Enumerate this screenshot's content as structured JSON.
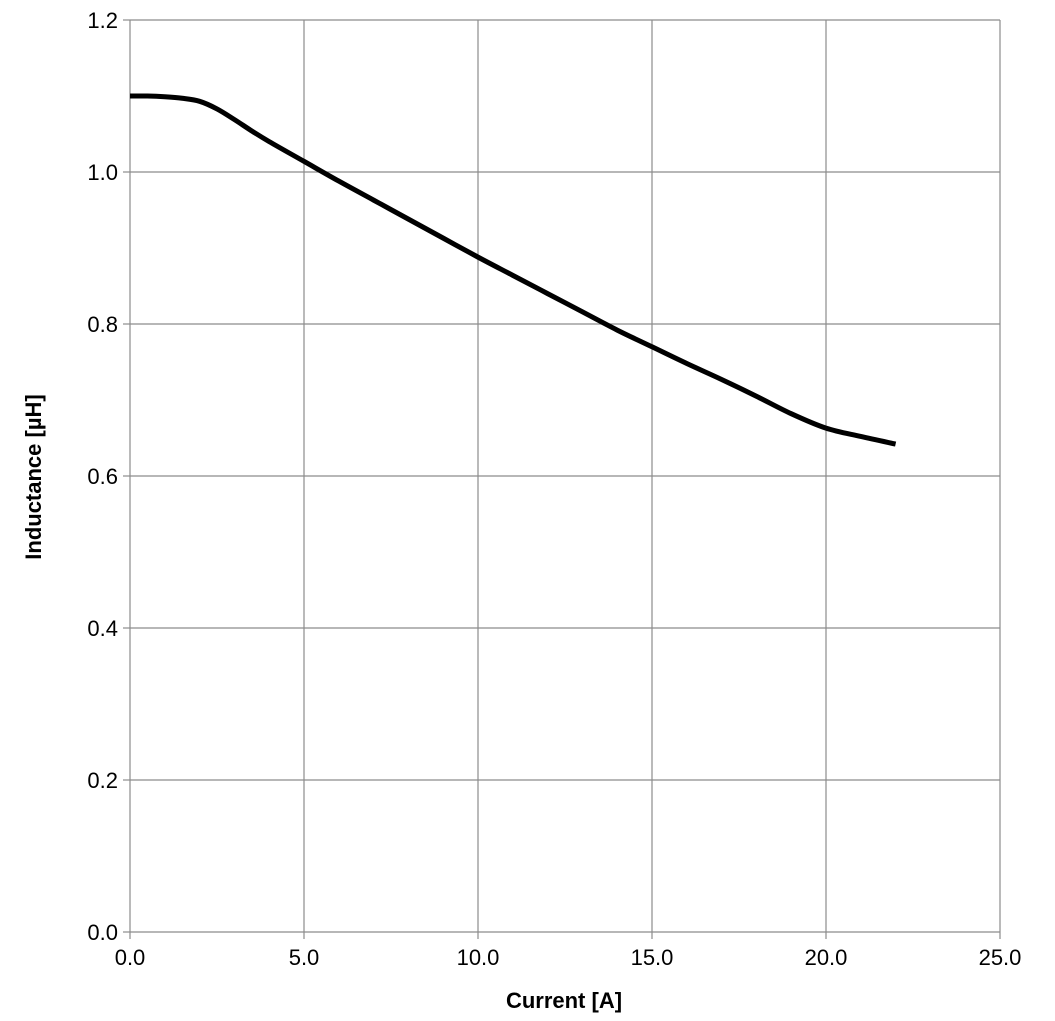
{
  "chart_data": {
    "type": "line",
    "title": "",
    "xlabel": "Current [A]",
    "ylabel": "Inductance [µH]",
    "xlim": [
      0,
      25
    ],
    "ylim": [
      0,
      1.2
    ],
    "x_ticks": [
      "0.0",
      "5.0",
      "10.0",
      "15.0",
      "20.0",
      "25.0"
    ],
    "y_ticks": [
      "0.0",
      "0.2",
      "0.4",
      "0.6",
      "0.8",
      "1.0",
      "1.2"
    ],
    "grid": true,
    "legend": "none",
    "series": [
      {
        "color": "#000000",
        "x": [
          0,
          0.5,
          1,
          1.5,
          2,
          2.5,
          3,
          3.5,
          4,
          5,
          6,
          7,
          8,
          9,
          10,
          11,
          12,
          13,
          14,
          15,
          16,
          17,
          18,
          19,
          20,
          21,
          22
        ],
        "y": [
          1.1,
          1.1,
          1.099,
          1.097,
          1.093,
          1.083,
          1.069,
          1.054,
          1.04,
          1.014,
          0.988,
          0.963,
          0.938,
          0.913,
          0.888,
          0.864,
          0.84,
          0.816,
          0.792,
          0.77,
          0.748,
          0.727,
          0.705,
          0.682,
          0.663,
          0.652,
          0.642
        ]
      }
    ]
  }
}
